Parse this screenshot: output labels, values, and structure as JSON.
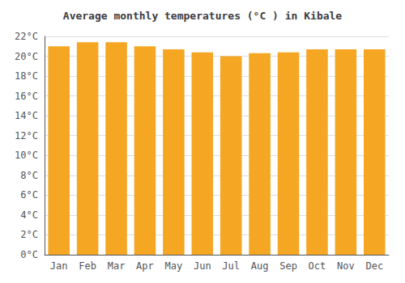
{
  "chart_data": {
    "type": "bar",
    "title": "Average monthly temperatures (°C ) in Kibale",
    "categories": [
      "Jan",
      "Feb",
      "Mar",
      "Apr",
      "May",
      "Jun",
      "Jul",
      "Aug",
      "Sep",
      "Oct",
      "Nov",
      "Dec"
    ],
    "values": [
      21.0,
      21.4,
      21.4,
      21.0,
      20.7,
      20.4,
      20.0,
      20.3,
      20.4,
      20.7,
      20.7,
      20.7
    ],
    "color": "#F5A623",
    "ylim": [
      0,
      22
    ],
    "yticks": [
      {
        "value": 0,
        "label": "0°C"
      },
      {
        "value": 2,
        "label": "2°C"
      },
      {
        "value": 4,
        "label": "4°C"
      },
      {
        "value": 6,
        "label": "6°C"
      },
      {
        "value": 8,
        "label": "8°C"
      },
      {
        "value": 10,
        "label": "10°C"
      },
      {
        "value": 12,
        "label": "12°C"
      },
      {
        "value": 14,
        "label": "14°C"
      },
      {
        "value": 16,
        "label": "16°C"
      },
      {
        "value": 18,
        "label": "18°C"
      },
      {
        "value": 20,
        "label": "20°C"
      },
      {
        "value": 22,
        "label": "22°C"
      }
    ],
    "grid": true
  }
}
